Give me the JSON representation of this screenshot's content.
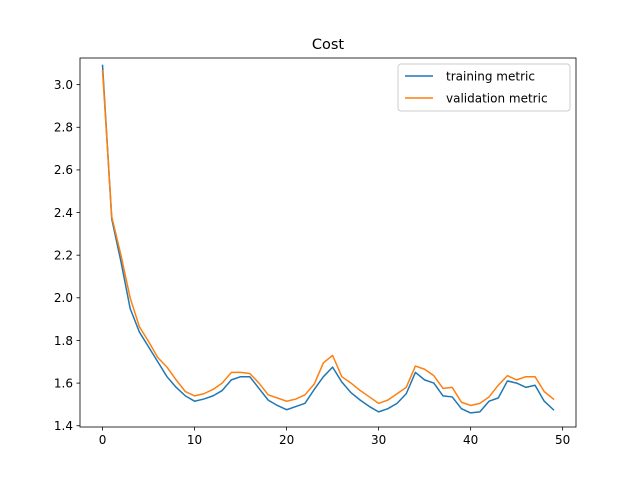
{
  "chart_data": {
    "type": "line",
    "title": "Cost",
    "xlabel": "",
    "ylabel": "",
    "xlim": [
      -2.45,
      51.45
    ],
    "ylim": [
      1.394,
      3.125
    ],
    "xticks": [
      0,
      10,
      20,
      30,
      40,
      50
    ],
    "yticks": [
      1.4,
      1.6,
      1.8,
      2.0,
      2.2,
      2.4,
      2.6,
      2.8,
      3.0
    ],
    "ytick_labels": [
      "1.4",
      "1.6",
      "1.8",
      "2.0",
      "2.2",
      "2.4",
      "2.6",
      "2.8",
      "3.0"
    ],
    "grid": false,
    "legend_position": "top-right",
    "x": [
      0,
      1,
      2,
      3,
      4,
      5,
      6,
      7,
      8,
      9,
      10,
      11,
      12,
      13,
      14,
      15,
      16,
      17,
      18,
      19,
      20,
      21,
      22,
      23,
      24,
      25,
      26,
      27,
      28,
      29,
      30,
      31,
      32,
      33,
      34,
      35,
      36,
      37,
      38,
      39,
      40,
      41,
      42,
      43,
      44,
      45,
      46,
      47,
      48,
      49
    ],
    "series": [
      {
        "name": "training metric",
        "color": "#1f77b4",
        "values": [
          3.09,
          2.37,
          2.17,
          1.95,
          1.84,
          1.77,
          1.7,
          1.63,
          1.58,
          1.54,
          1.515,
          1.525,
          1.54,
          1.565,
          1.615,
          1.63,
          1.63,
          1.575,
          1.52,
          1.495,
          1.475,
          1.49,
          1.505,
          1.57,
          1.63,
          1.675,
          1.605,
          1.555,
          1.52,
          1.49,
          1.465,
          1.48,
          1.505,
          1.55,
          1.65,
          1.615,
          1.6,
          1.54,
          1.535,
          1.48,
          1.46,
          1.465,
          1.515,
          1.53,
          1.61,
          1.6,
          1.58,
          1.59,
          1.515,
          1.475
        ]
      },
      {
        "name": "validation metric",
        "color": "#ff7f0e",
        "values": [
          3.065,
          2.38,
          2.2,
          2.0,
          1.865,
          1.795,
          1.72,
          1.675,
          1.615,
          1.56,
          1.54,
          1.55,
          1.57,
          1.6,
          1.65,
          1.65,
          1.645,
          1.6,
          1.545,
          1.53,
          1.515,
          1.525,
          1.545,
          1.595,
          1.695,
          1.73,
          1.63,
          1.6,
          1.565,
          1.535,
          1.505,
          1.52,
          1.55,
          1.58,
          1.68,
          1.665,
          1.635,
          1.575,
          1.58,
          1.51,
          1.495,
          1.505,
          1.535,
          1.59,
          1.635,
          1.615,
          1.63,
          1.63,
          1.56,
          1.525
        ]
      }
    ]
  }
}
